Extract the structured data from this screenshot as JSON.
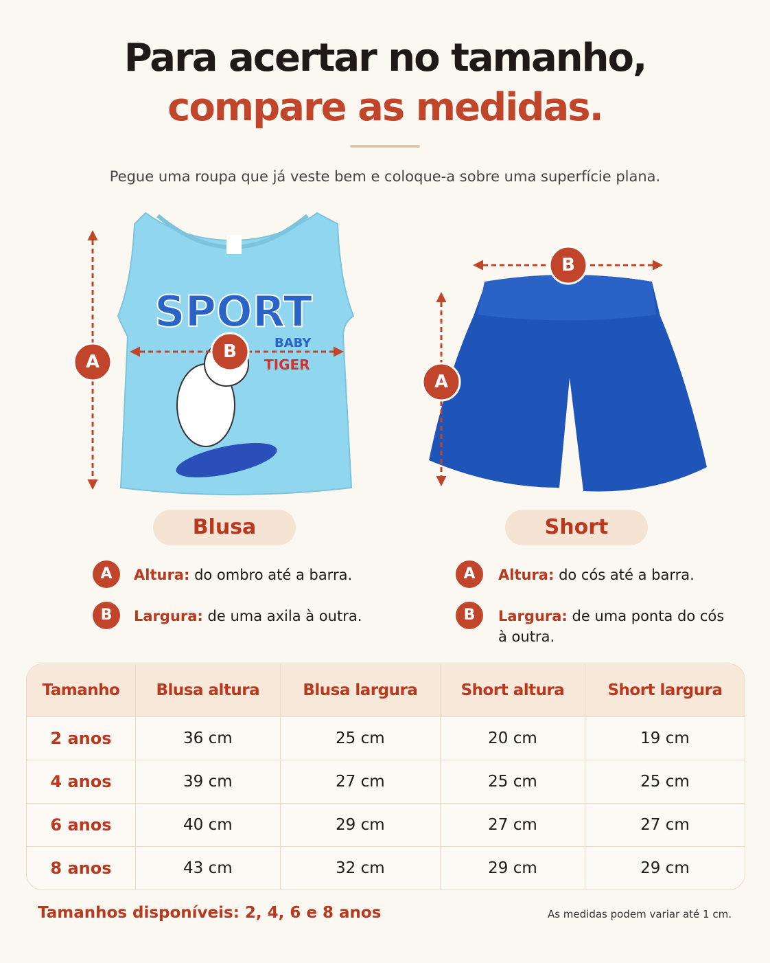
{
  "header": {
    "title_line1": "Para acertar no tamanho,",
    "title_line2": "compare as medidas.",
    "subtitle": "Pegue uma roupa que já veste bem e coloque-a sobre uma superfície plana."
  },
  "shirt_print": [
    "SPORT",
    "BABY",
    "TIGER"
  ],
  "garments": [
    {
      "name": "Blusa",
      "items": [
        {
          "marker": "A",
          "term": "Altura:",
          "desc": "do ombro até a barra."
        },
        {
          "marker": "B",
          "term": "Largura:",
          "desc": "de uma axila à outra."
        }
      ]
    },
    {
      "name": "Short",
      "items": [
        {
          "marker": "A",
          "term": "Altura:",
          "desc": "do cós até a barra."
        },
        {
          "marker": "B",
          "term": "Largura:",
          "desc": "de uma ponta do cós à outra."
        }
      ]
    }
  ],
  "table": {
    "headers": [
      "Tamanho",
      "Blusa altura",
      "Blusa largura",
      "Short altura",
      "Short largura"
    ],
    "rows": [
      [
        "2 anos",
        "36 cm",
        "25 cm",
        "20 cm",
        "19 cm"
      ],
      [
        "4 anos",
        "39 cm",
        "27 cm",
        "25 cm",
        "25 cm"
      ],
      [
        "6 anos",
        "40 cm",
        "29 cm",
        "27 cm",
        "27 cm"
      ],
      [
        "8 anos",
        "43 cm",
        "32 cm",
        "29 cm",
        "29 cm"
      ]
    ]
  },
  "footer": {
    "available": "Tamanhos disponíveis: 2, 4, 6 e 8 anos",
    "note": "As medidas podem variar até 1 cm."
  }
}
